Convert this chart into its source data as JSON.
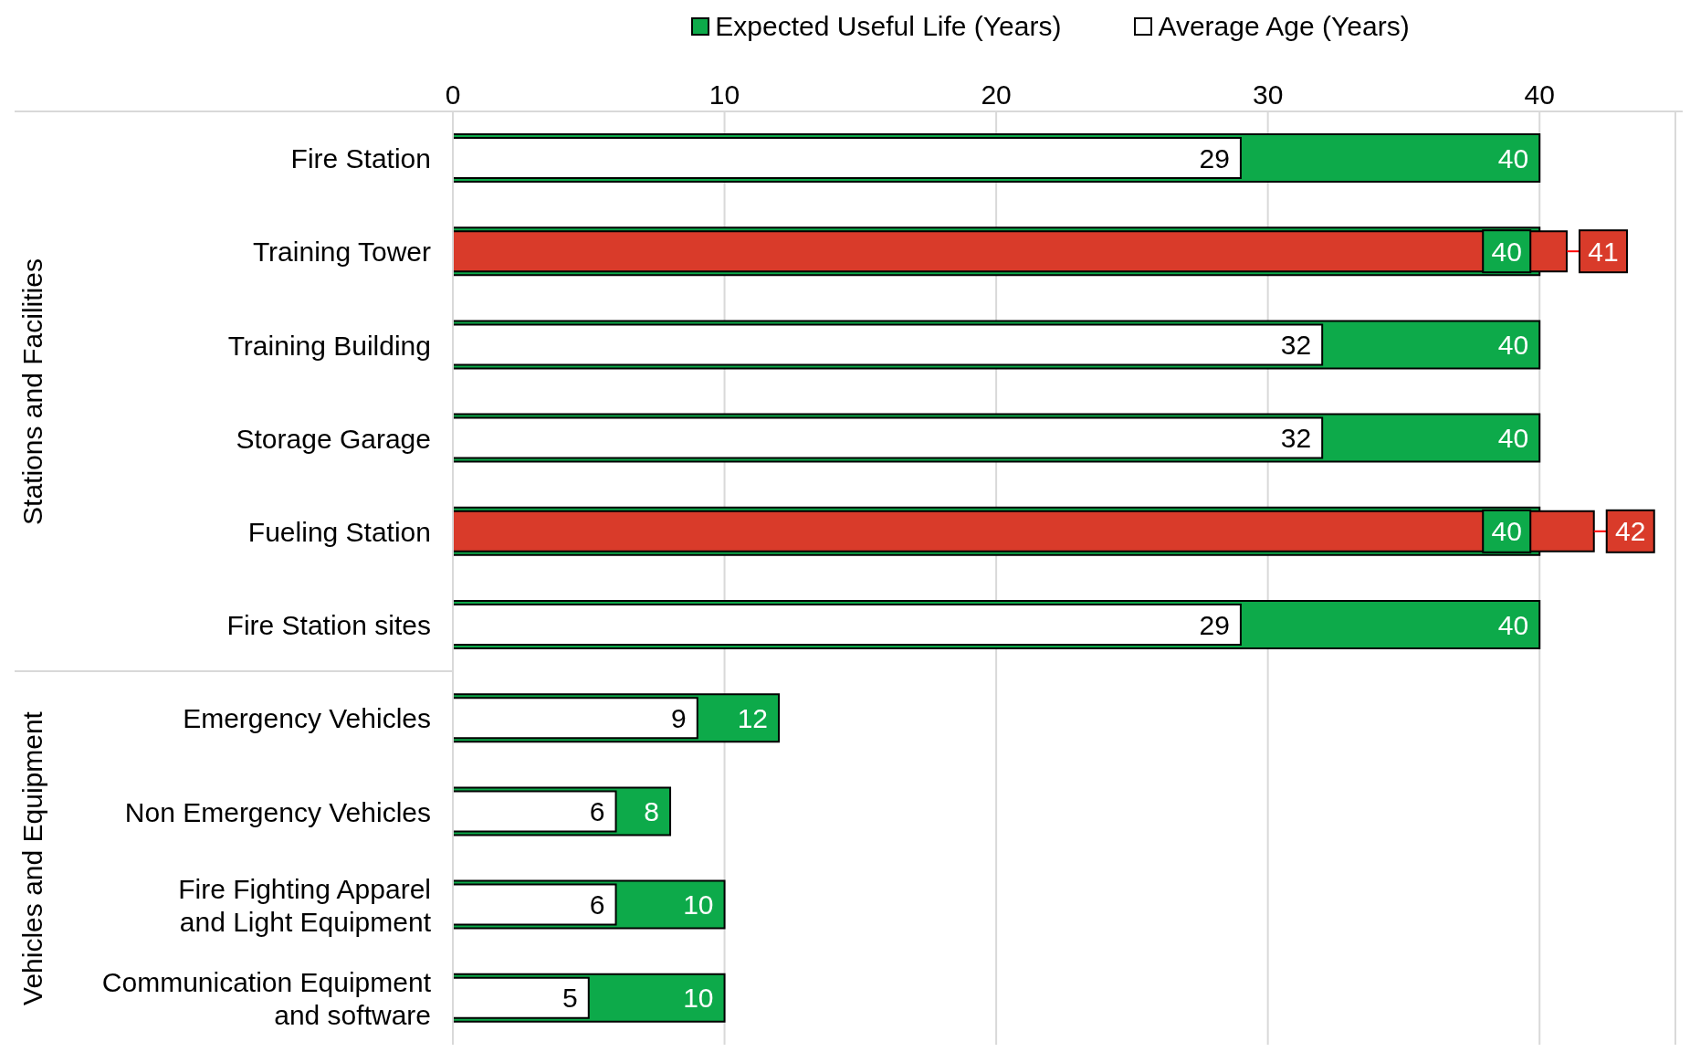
{
  "chart_data": {
    "type": "bar",
    "orientation": "horizontal",
    "categories": [
      "Fire Station",
      "Training Tower",
      "Training Building",
      "Storage Garage",
      "Fueling Station",
      "Fire Station sites ",
      "Emergency Vehicles",
      "Non Emergency Vehicles",
      "Fire Fighting Apparel and Light Equipment",
      "Communication Equipment and software"
    ],
    "series": [
      {
        "name": "Expected Useful Life (Years)",
        "color": "#0daa4a",
        "values": [
          40,
          40,
          40,
          40,
          40,
          40,
          12,
          8,
          10,
          10
        ]
      },
      {
        "name": "Average Age (Years)",
        "color": "#ffffff",
        "colors": [
          "#ffffff",
          "#d93b2a",
          "#ffffff",
          "#ffffff",
          "#d93b2a",
          "#ffffff",
          "#ffffff",
          "#ffffff",
          "#ffffff",
          "#ffffff"
        ],
        "values": [
          29,
          41,
          32,
          32,
          42,
          29,
          9,
          6,
          6,
          5
        ]
      }
    ],
    "xlim": [
      0,
      45
    ],
    "xticks": [
      0,
      10,
      20,
      30,
      40
    ],
    "grid": "x",
    "legend": "top",
    "data_labels": true,
    "annotations": [
      "Stations and Facilities",
      "Vehicles and Equipment"
    ]
  }
}
